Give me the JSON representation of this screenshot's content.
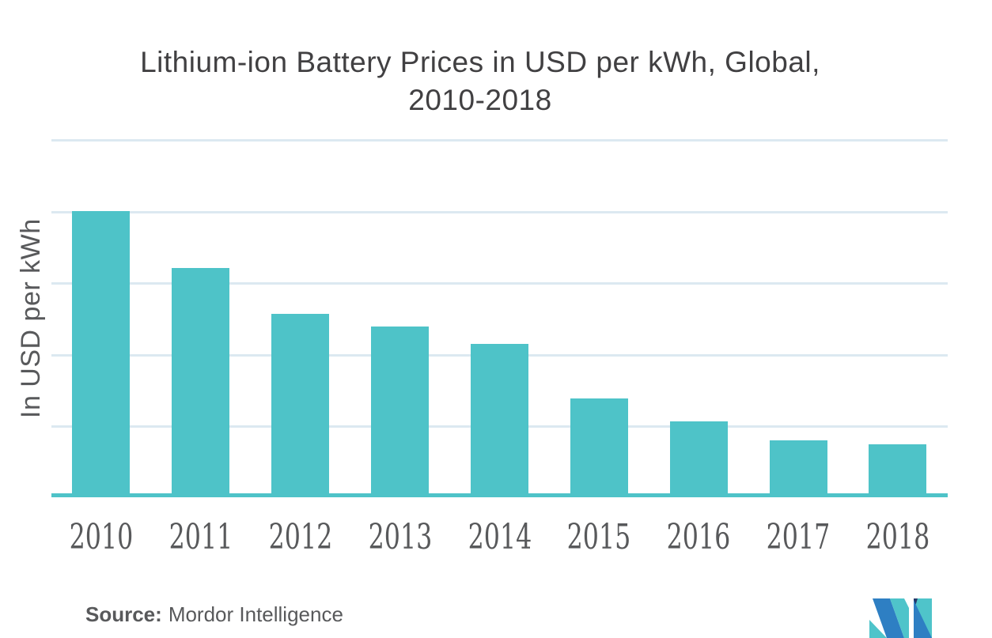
{
  "header": {
    "title_line1": "Lithium-ion Battery Prices in USD per kWh, Global,",
    "title_line2": "2010-2018"
  },
  "chart_data": {
    "type": "bar",
    "title": "Lithium-ion Battery Prices in USD per kWh, Global, 2010-2018",
    "xlabel": "",
    "ylabel": "In USD per kWh",
    "categories": [
      "2010",
      "2011",
      "2012",
      "2013",
      "2014",
      "2015",
      "2016",
      "2017",
      "2018"
    ],
    "values": [
      1000,
      800,
      640,
      595,
      535,
      345,
      265,
      200,
      185
    ],
    "ylim": [
      0,
      1250
    ],
    "gridline_step": 250,
    "y_tick_labels_visible": false,
    "grid": true,
    "legend_position": "none",
    "bar_color": "#4EC3C8"
  },
  "source": {
    "label": "Source:",
    "value": "Mordor Intelligence"
  },
  "colors": {
    "bar": "#4EC3C8",
    "gridline": "#DCE9F1",
    "axis": "#4EC3C8",
    "title": "#414042",
    "label": "#58595B",
    "logo_blue": "#2E7FC3",
    "logo_teal": "#4FC4CA",
    "logo_navy": "#24386B"
  }
}
